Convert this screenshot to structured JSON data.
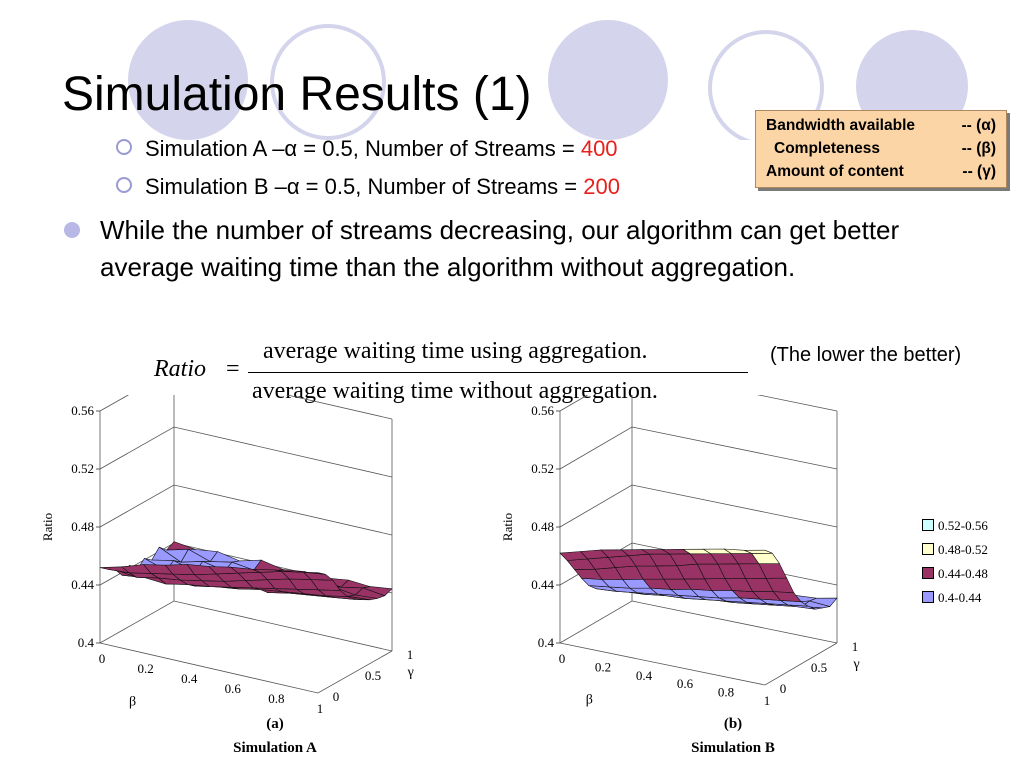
{
  "slide": {
    "title": "Simulation Results (1)",
    "sub_a": {
      "prefix": "Simulation A –α = 0.5, Number of Streams = ",
      "value": "400"
    },
    "sub_b": {
      "prefix": "Simulation B –α = 0.5, Number of Streams = ",
      "value": "200"
    },
    "bullet": "While the number of streams decreasing, our algorithm can get better average waiting time than the algorithm without aggregation.",
    "legend_box": [
      {
        "label": "Bandwidth available",
        "symbol": "-- (α)"
      },
      {
        "label": "Completeness",
        "symbol": "-- (β)"
      },
      {
        "label": "Amount of content",
        "symbol": "-- (γ)"
      }
    ],
    "formula": {
      "lhs": "Ratio",
      "eq": "=",
      "numerator": "average waiting time using aggregation.",
      "denominator": "average waiting time without aggregation."
    },
    "note": "(The lower the better)",
    "colors": {
      "accent_red": "#e8201c",
      "deco_circle": "#d4d4ec",
      "legend_bg": "#fbd5a5"
    }
  },
  "chart_data": [
    {
      "type": "surface3d",
      "panel_label": "(a)",
      "caption": "Simulation A",
      "zlabel": "Ratio",
      "xlabel": "β",
      "ylabel": "γ",
      "zlim": [
        0.4,
        0.56
      ],
      "z_ticks": [
        "0.4",
        "0.44",
        "0.48",
        "0.52",
        "0.56"
      ],
      "x_ticks": [
        "0",
        "0.2",
        "0.4",
        "0.6",
        "0.8",
        "1"
      ],
      "y_ticks": [
        "0",
        "0.5",
        "1"
      ],
      "x": [
        0,
        0.1,
        0.2,
        0.3,
        0.4,
        0.5,
        0.6,
        0.7,
        0.8,
        0.9,
        1.0
      ],
      "y": [
        0,
        0.1,
        0.2,
        0.3,
        0.4,
        0.5,
        0.6,
        0.7,
        0.8,
        0.9,
        1.0
      ],
      "z": [
        [
          0.452,
          0.448,
          0.445,
          0.438,
          0.442,
          0.436,
          0.441,
          0.437,
          0.443,
          0.438,
          0.441
        ],
        [
          0.456,
          0.449,
          0.443,
          0.44,
          0.437,
          0.442,
          0.436,
          0.44,
          0.436,
          0.442,
          0.439
        ],
        [
          0.461,
          0.452,
          0.446,
          0.439,
          0.441,
          0.437,
          0.441,
          0.436,
          0.44,
          0.437,
          0.441
        ],
        [
          0.464,
          0.455,
          0.448,
          0.442,
          0.438,
          0.44,
          0.437,
          0.441,
          0.437,
          0.44,
          0.438
        ],
        [
          0.468,
          0.458,
          0.451,
          0.444,
          0.441,
          0.438,
          0.442,
          0.438,
          0.441,
          0.438,
          0.442
        ],
        [
          0.47,
          0.462,
          0.454,
          0.447,
          0.443,
          0.445,
          0.439,
          0.442,
          0.438,
          0.441,
          0.439
        ],
        [
          0.473,
          0.466,
          0.458,
          0.45,
          0.446,
          0.441,
          0.443,
          0.44,
          0.442,
          0.439,
          0.441
        ],
        [
          0.475,
          0.47,
          0.462,
          0.453,
          0.448,
          0.444,
          0.441,
          0.443,
          0.44,
          0.442,
          0.44
        ],
        [
          0.478,
          0.474,
          0.466,
          0.456,
          0.45,
          0.446,
          0.444,
          0.441,
          0.443,
          0.44,
          0.442
        ],
        [
          0.48,
          0.477,
          0.469,
          0.459,
          0.452,
          0.448,
          0.445,
          0.443,
          0.441,
          0.443,
          0.441
        ],
        [
          0.483,
          0.479,
          0.472,
          0.462,
          0.455,
          0.45,
          0.447,
          0.444,
          0.442,
          0.441,
          0.443
        ]
      ]
    },
    {
      "type": "surface3d",
      "panel_label": "(b)",
      "caption": "Simulation B",
      "zlabel": "Ratio",
      "xlabel": "β",
      "ylabel": "γ",
      "zlim": [
        0.4,
        0.56
      ],
      "z_ticks": [
        "0.4",
        "0.44",
        "0.48",
        "0.52",
        "0.56"
      ],
      "x_ticks": [
        "0",
        "0.2",
        "0.4",
        "0.6",
        "0.8",
        "1"
      ],
      "y_ticks": [
        "0",
        "0.5",
        "1"
      ],
      "x": [
        0,
        0.1,
        0.2,
        0.3,
        0.4,
        0.5,
        0.6,
        0.7,
        0.8,
        0.9,
        1.0
      ],
      "y": [
        0,
        0.1,
        0.2,
        0.3,
        0.4,
        0.5,
        0.6,
        0.7,
        0.8,
        0.9,
        1.0
      ],
      "z": [
        [
          0.462,
          0.454,
          0.445,
          0.436,
          0.428,
          0.423,
          0.42,
          0.418,
          0.421,
          0.419,
          0.422
        ],
        [
          0.466,
          0.458,
          0.448,
          0.438,
          0.43,
          0.424,
          0.421,
          0.42,
          0.418,
          0.421,
          0.419
        ],
        [
          0.47,
          0.462,
          0.452,
          0.441,
          0.432,
          0.426,
          0.422,
          0.419,
          0.421,
          0.418,
          0.422
        ],
        [
          0.473,
          0.466,
          0.456,
          0.444,
          0.435,
          0.428,
          0.424,
          0.421,
          0.419,
          0.422,
          0.42
        ],
        [
          0.476,
          0.47,
          0.459,
          0.447,
          0.437,
          0.43,
          0.425,
          0.422,
          0.421,
          0.42,
          0.423
        ],
        [
          0.479,
          0.473,
          0.462,
          0.45,
          0.44,
          0.432,
          0.427,
          0.424,
          0.422,
          0.423,
          0.421
        ],
        [
          0.482,
          0.476,
          0.466,
          0.453,
          0.442,
          0.434,
          0.429,
          0.425,
          0.424,
          0.422,
          0.425
        ],
        [
          0.485,
          0.479,
          0.469,
          0.456,
          0.445,
          0.437,
          0.431,
          0.427,
          0.425,
          0.426,
          0.424
        ],
        [
          0.488,
          0.482,
          0.472,
          0.459,
          0.447,
          0.439,
          0.433,
          0.429,
          0.427,
          0.425,
          0.427
        ],
        [
          0.49,
          0.485,
          0.475,
          0.462,
          0.45,
          0.441,
          0.435,
          0.431,
          0.428,
          0.429,
          0.428
        ],
        [
          0.493,
          0.488,
          0.478,
          0.465,
          0.452,
          0.443,
          0.437,
          0.432,
          0.43,
          0.428,
          0.431
        ]
      ]
    }
  ],
  "color_legend": [
    {
      "label": "0.52-0.56",
      "color": "#ccffff"
    },
    {
      "label": "0.48-0.52",
      "color": "#ffffcc"
    },
    {
      "label": "0.44-0.48",
      "color": "#993366"
    },
    {
      "label": "0.4-0.44",
      "color": "#9999ff"
    }
  ]
}
